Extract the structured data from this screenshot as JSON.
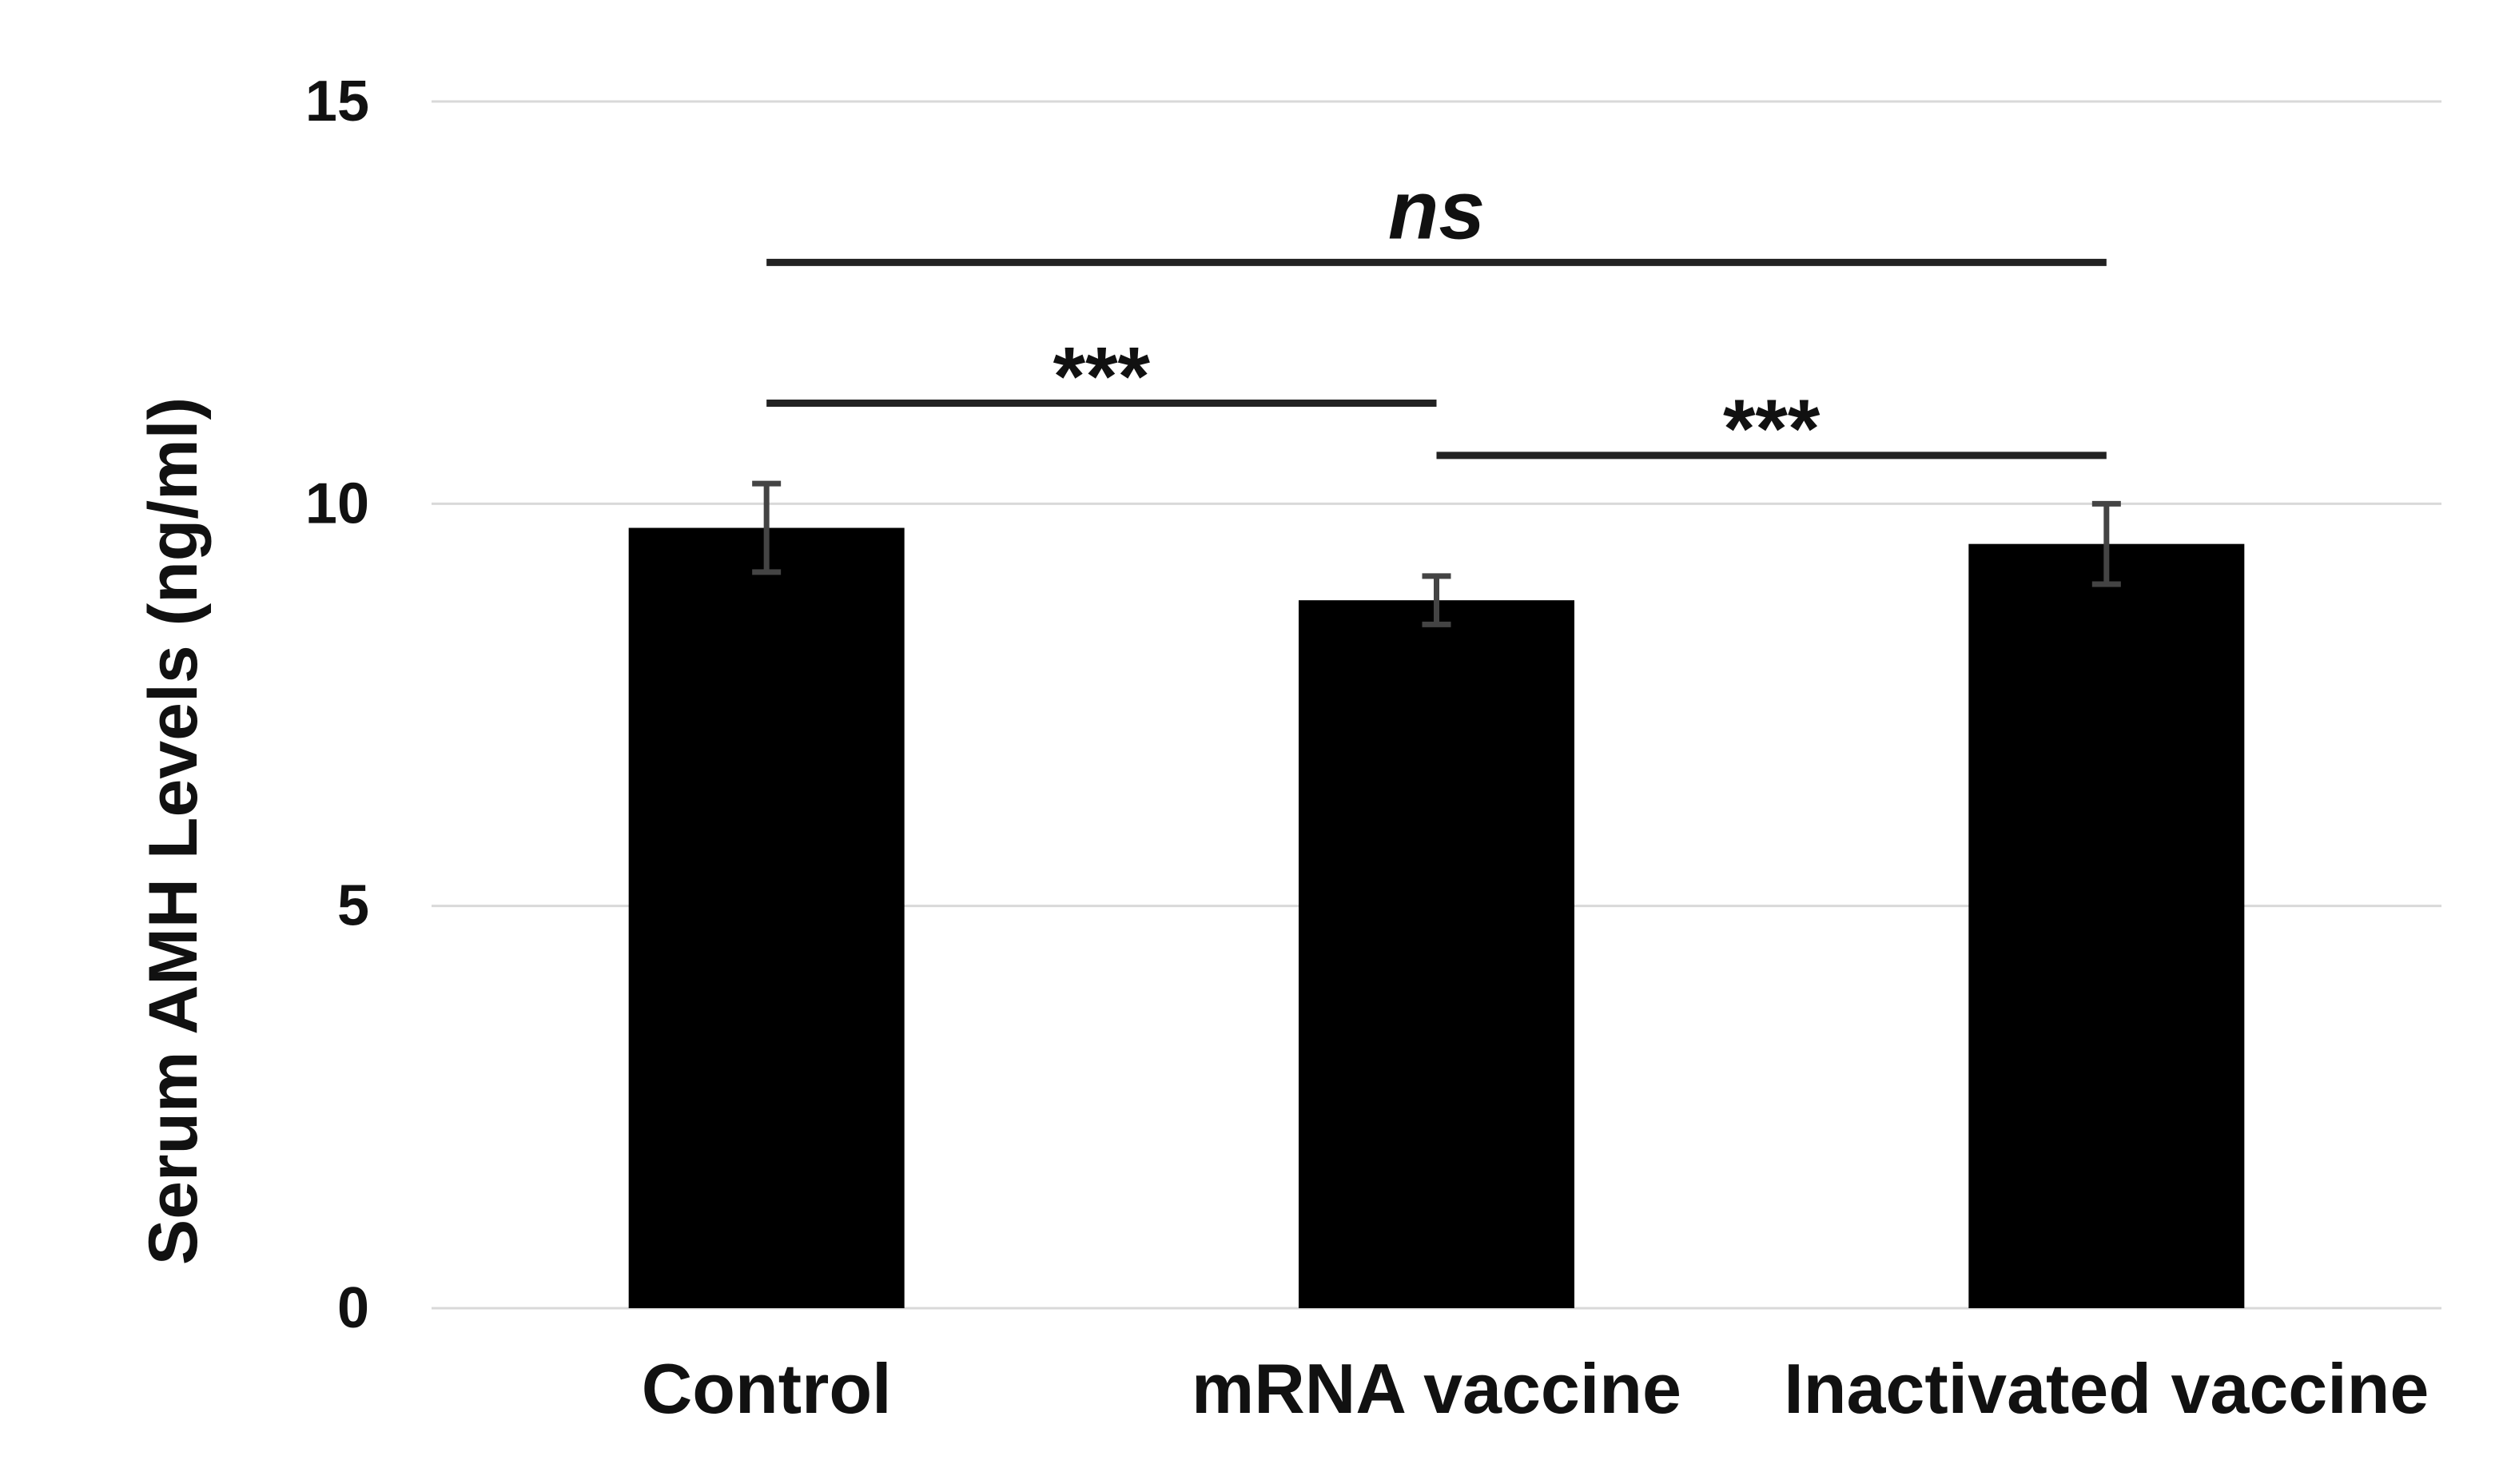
{
  "figure": {
    "background": "#ffffff"
  },
  "chart_data": {
    "type": "bar",
    "title": "",
    "xlabel": "",
    "ylabel": "Serum AMH Levels (ng/ml)",
    "categories": [
      "Control",
      "mRNA vaccine",
      "Inactivated vaccine"
    ],
    "series": [
      {
        "name": "Serum AMH Levels",
        "values": [
          9.7,
          8.8,
          9.5
        ],
        "errors": [
          0.55,
          0.3,
          0.5
        ]
      }
    ],
    "ylim": [
      0,
      15
    ],
    "yticks": [
      15,
      10,
      5,
      0
    ],
    "grid": true,
    "legend": "none",
    "colors": {
      "bar": "#000000",
      "error_bar": "#444444",
      "gridline": "#d9d9d9",
      "significance_line": "#222222",
      "text": "#111111"
    },
    "significance": [
      {
        "from": 0,
        "to": 2,
        "label": "ns",
        "italic": true,
        "line_y": 13.0
      },
      {
        "from": 0,
        "to": 1,
        "label": "***",
        "italic": false,
        "line_y": 11.25
      },
      {
        "from": 1,
        "to": 2,
        "label": "***",
        "italic": false,
        "line_y": 10.6
      }
    ]
  }
}
